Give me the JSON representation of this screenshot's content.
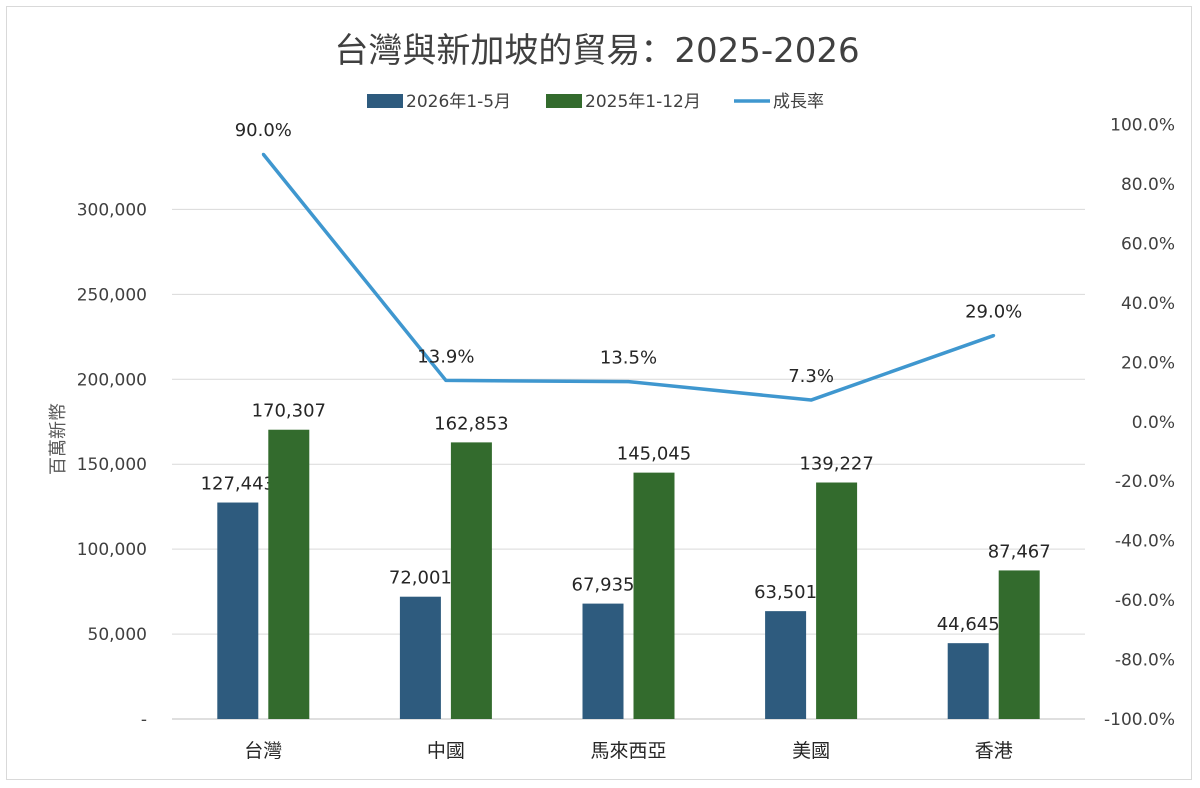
{
  "chart_data": {
    "type": "bar",
    "title": "台灣與新加坡的貿易：2025-2026",
    "xlabel": "",
    "ylabel": "百萬新幣",
    "y2label": "",
    "categories": [
      "台灣",
      "中國",
      "馬來西亞",
      "美國",
      "香港"
    ],
    "series": [
      {
        "name": "2026年1-5月",
        "type": "bar",
        "axis": "left",
        "color": "#2e5b7e",
        "values": [
          127443,
          72001,
          67935,
          63501,
          44645
        ],
        "labels": [
          "127,443",
          "72,001",
          "67,935",
          "63,501",
          "44,645"
        ]
      },
      {
        "name": "2025年1-12月",
        "type": "bar",
        "axis": "left",
        "color": "#336b2d",
        "values": [
          170307,
          162853,
          145045,
          139227,
          87467
        ],
        "labels": [
          "170,307",
          "162,853",
          "145,045",
          "139,227",
          "87,467"
        ]
      },
      {
        "name": "成長率",
        "type": "line",
        "axis": "right",
        "color": "#3f97cf",
        "values": [
          90.0,
          13.9,
          13.5,
          7.3,
          29.0
        ],
        "labels": [
          "90.0%",
          "13.9%",
          "13.5%",
          "7.3%",
          "29.0%"
        ]
      }
    ],
    "ylim": [
      0,
      350000
    ],
    "y_ticks": [
      0,
      50000,
      100000,
      150000,
      200000,
      250000,
      300000
    ],
    "y_tick_labels": [
      "-",
      "50,000",
      "100,000",
      "150,000",
      "200,000",
      "250,000",
      "300,000"
    ],
    "y2lim": [
      -100,
      100
    ],
    "y2_ticks": [
      -100,
      -80,
      -60,
      -40,
      -20,
      0,
      20,
      40,
      60,
      80,
      100
    ],
    "y2_tick_labels": [
      "-100.0%",
      "-80.0%",
      "-60.0%",
      "-40.0%",
      "-20.0%",
      "0.0%",
      "20.0%",
      "40.0%",
      "60.0%",
      "80.0%",
      "100.0%"
    ],
    "grid": true,
    "legend": "top-center"
  }
}
